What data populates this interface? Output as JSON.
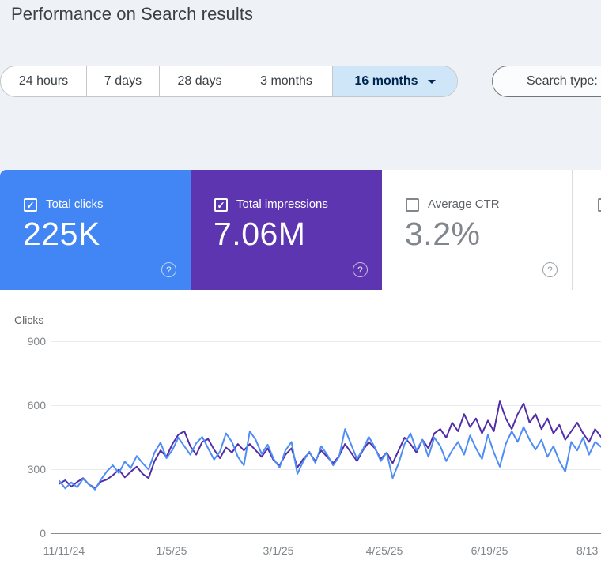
{
  "header": {
    "title": "Performance on Search results"
  },
  "toolbar": {
    "date_ranges": [
      "24 hours",
      "7 days",
      "28 days",
      "3 months",
      "16 months"
    ],
    "selected_range": "16 months",
    "search_type_label": "Search type:"
  },
  "colors": {
    "clicks_card": "#4285f4",
    "impressions_card": "#5e35b1",
    "clicks_line": "#4e8df5",
    "impressions_line": "#512da8",
    "selected_tab_bg": "#cfe5f8",
    "selected_tab_text": "#00254e"
  },
  "metrics": {
    "cards": [
      {
        "label": "Total clicks",
        "value": "225K",
        "checked": true
      },
      {
        "label": "Total impressions",
        "value": "7.06M",
        "checked": true
      },
      {
        "label": "Average CTR",
        "value": "3.2%",
        "checked": false
      }
    ]
  },
  "chart_data": {
    "type": "line",
    "ylabel": "Clicks",
    "ylim": [
      0,
      900
    ],
    "yticks": [
      0,
      300,
      600,
      900
    ],
    "xticks": [
      "11/11/24",
      "1/5/25",
      "3/1/25",
      "4/25/25",
      "6/19/25",
      "8/13"
    ],
    "grid": "horizontal gridlines at 300/600/900, x-axis line at 0",
    "legend": "none (line colors match metric card colors)",
    "x_axis_note": "daily values over 16-month range starting 11/11/24; right side cropped near 8/13/25",
    "series": [
      {
        "name": "Total impressions (scaled to clicks axis)",
        "color": "#512da8",
        "values": [
          232,
          248,
          218,
          240,
          258,
          228,
          212,
          242,
          252,
          272,
          298,
          262,
          288,
          312,
          278,
          258,
          338,
          388,
          358,
          418,
          462,
          478,
          408,
          368,
          428,
          442,
          392,
          352,
          402,
          378,
          418,
          388,
          418,
          388,
          358,
          398,
          342,
          318,
          368,
          398,
          308,
          348,
          378,
          338,
          388,
          358,
          328,
          362,
          418,
          378,
          338,
          388,
          428,
          398,
          348,
          378,
          328,
          388,
          448,
          418,
          378,
          438,
          398,
          468,
          488,
          448,
          518,
          478,
          558,
          498,
          538,
          468,
          528,
          478,
          618,
          538,
          488,
          558,
          608,
          518,
          558,
          488,
          538,
          468,
          508,
          438,
          478,
          518,
          468,
          428,
          488,
          452
        ]
      },
      {
        "name": "Total clicks",
        "color": "#4e8df5",
        "values": [
          245,
          210,
          238,
          215,
          255,
          228,
          205,
          252,
          290,
          318,
          282,
          336,
          305,
          362,
          328,
          298,
          378,
          425,
          352,
          390,
          448,
          408,
          368,
          422,
          452,
          398,
          345,
          383,
          468,
          428,
          358,
          318,
          478,
          438,
          372,
          415,
          348,
          308,
          388,
          428,
          278,
          338,
          382,
          330,
          408,
          368,
          318,
          358,
          488,
          418,
          348,
          393,
          452,
          403,
          338,
          378,
          258,
          328,
          418,
          468,
          388,
          438,
          358,
          448,
          408,
          338,
          388,
          428,
          368,
          458,
          398,
          348,
          462,
          378,
          312,
          418,
          478,
          428,
          498,
          438,
          392,
          438,
          358,
          408,
          338,
          288,
          428,
          388,
          448,
          368,
          428,
          405
        ]
      }
    ]
  }
}
